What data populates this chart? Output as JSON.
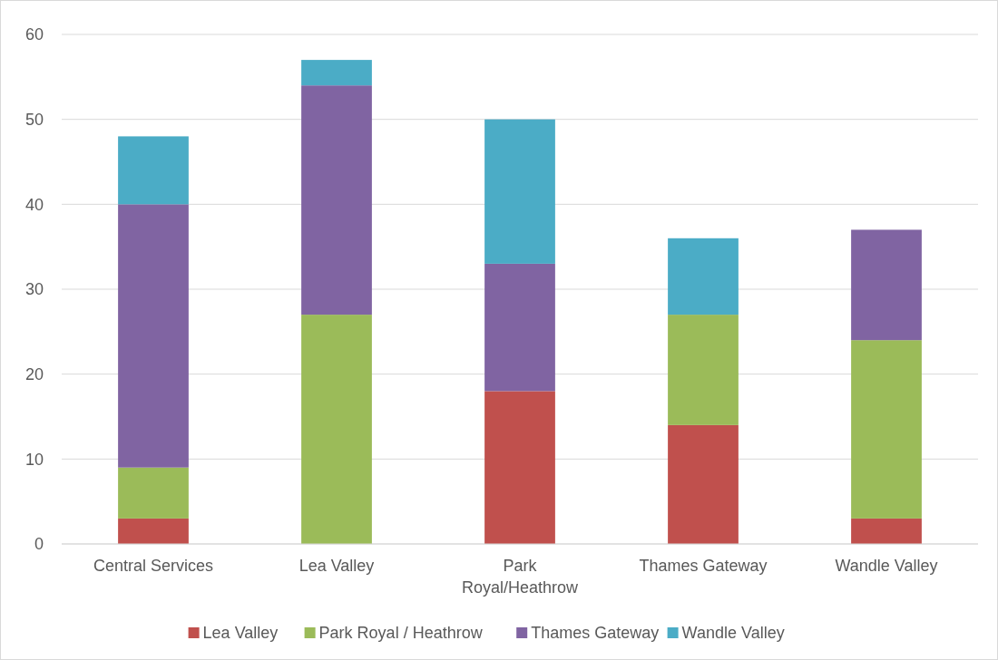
{
  "chart_data": {
    "type": "bar",
    "stacked": true,
    "categories": [
      "Central Services",
      "Lea Valley",
      "Park Royal/Heathrow",
      "Thames Gateway",
      "Wandle Valley"
    ],
    "series": [
      {
        "name": "Lea Valley",
        "color": "#c0504d",
        "values": [
          3,
          0,
          18,
          14,
          3
        ]
      },
      {
        "name": "Park Royal / Heathrow",
        "color": "#9bbb59",
        "values": [
          6,
          27,
          0,
          13,
          21
        ]
      },
      {
        "name": "Thames Gateway",
        "color": "#8064a2",
        "values": [
          31,
          27,
          15,
          0,
          13
        ]
      },
      {
        "name": "Wandle Valley",
        "color": "#4bacc6",
        "values": [
          8,
          3,
          17,
          9,
          0
        ]
      }
    ],
    "ylim": [
      0,
      60
    ],
    "yticks": [
      0,
      10,
      20,
      30,
      40,
      50,
      60
    ],
    "grid": "y",
    "legend": "bottom"
  }
}
